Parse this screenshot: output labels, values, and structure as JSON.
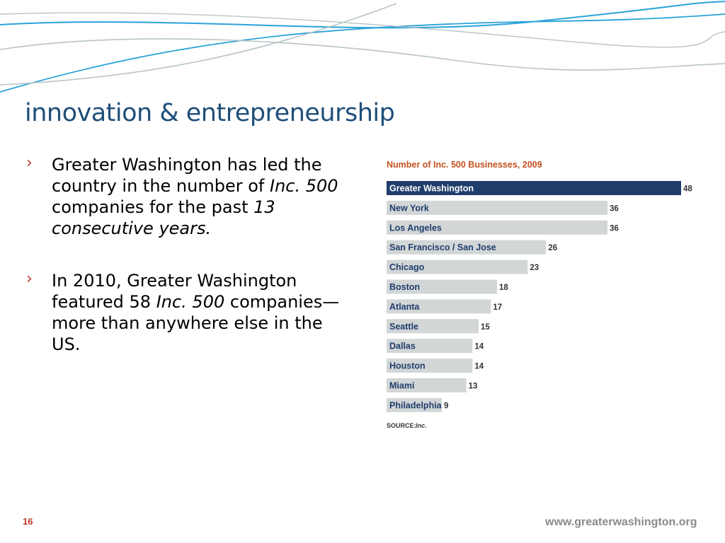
{
  "slide": {
    "title": "innovation & entrepreneurship",
    "page_number": "16",
    "url": "www.greaterwashington.org",
    "bullets": [
      {
        "parts": [
          {
            "text": "Greater Washington has led the country in the number of ",
            "italic": false
          },
          {
            "text": "Inc. 500",
            "italic": true
          },
          {
            "text": " companies for the past ",
            "italic": false
          },
          {
            "text": "13 consecutive years.",
            "italic": true
          }
        ]
      },
      {
        "parts": [
          {
            "text": "In 2010, Greater Washington featured 58 ",
            "italic": false
          },
          {
            "text": "Inc. 500",
            "italic": true
          },
          {
            "text": " companies—more than anywhere else in the US.",
            "italic": false
          }
        ]
      }
    ]
  },
  "colors": {
    "title": "#1f4e79",
    "highlight_bar": "#1f3d6b",
    "bar": "#d2d6d7",
    "chart_title": "#c2511f",
    "bullet_marker": "#c0392b",
    "deco_blue": "#29a3d8",
    "deco_gray": "#b8c4c8"
  },
  "chart_data": {
    "type": "bar",
    "orientation": "horizontal",
    "title": "Number of Inc. 500 Businesses, 2009",
    "source_label": "SOURCE:",
    "source_value": "Inc.",
    "categories": [
      "Greater Washington",
      "New York",
      "Los Angeles",
      "San Francisco / San Jose",
      "Chicago",
      "Boston",
      "Atlanta",
      "Seattle",
      "Dallas",
      "Houston",
      "Miami",
      "Philadelphia"
    ],
    "values": [
      48,
      36,
      36,
      26,
      23,
      18,
      17,
      15,
      14,
      14,
      13,
      9
    ],
    "highlight": "Greater Washington",
    "xlim": [
      0,
      48
    ],
    "grid": false,
    "legend": "none"
  }
}
